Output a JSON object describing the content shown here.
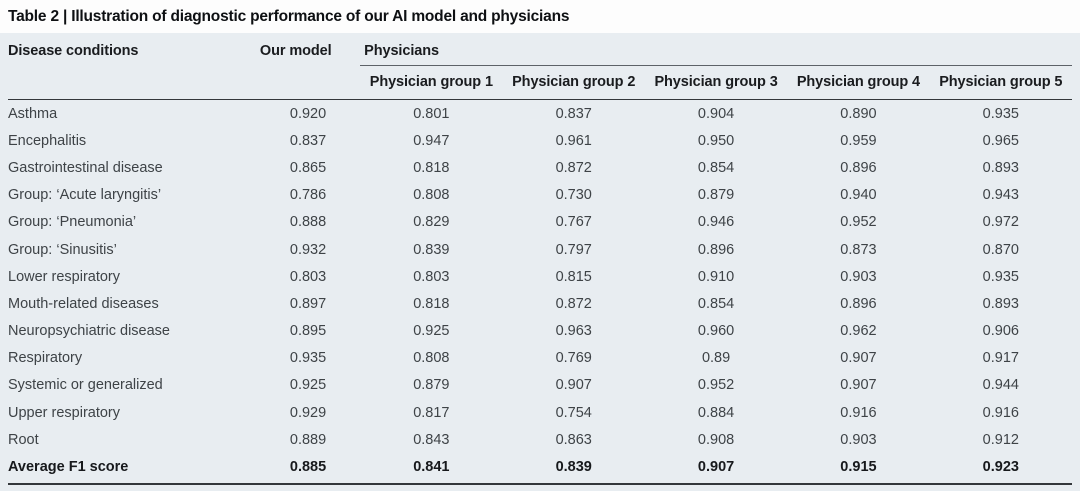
{
  "table": {
    "title": "Table 2 | Illustration of diagnostic performance of our AI model and physicians",
    "columns": {
      "disease": "Disease conditions",
      "our_model": "Our model",
      "physicians": "Physicians",
      "physician_groups": [
        "Physician group 1",
        "Physician group 2",
        "Physician group 3",
        "Physician group 4",
        "Physician group 5"
      ]
    },
    "rows": [
      {
        "condition": "Asthma",
        "values": [
          "0.920",
          "0.801",
          "0.837",
          "0.904",
          "0.890",
          "0.935"
        ]
      },
      {
        "condition": "Encephalitis",
        "values": [
          "0.837",
          "0.947",
          "0.961",
          "0.950",
          "0.959",
          "0.965"
        ]
      },
      {
        "condition": "Gastrointestinal disease",
        "values": [
          "0.865",
          "0.818",
          "0.872",
          "0.854",
          "0.896",
          "0.893"
        ]
      },
      {
        "condition": "Group: ‘Acute laryngitis’",
        "values": [
          "0.786",
          "0.808",
          "0.730",
          "0.879",
          "0.940",
          "0.943"
        ]
      },
      {
        "condition": "Group: ‘Pneumonia’",
        "values": [
          "0.888",
          "0.829",
          "0.767",
          "0.946",
          "0.952",
          "0.972"
        ]
      },
      {
        "condition": "Group: ‘Sinusitis’",
        "values": [
          "0.932",
          "0.839",
          "0.797",
          "0.896",
          "0.873",
          "0.870"
        ]
      },
      {
        "condition": "Lower respiratory",
        "values": [
          "0.803",
          "0.803",
          "0.815",
          "0.910",
          "0.903",
          "0.935"
        ]
      },
      {
        "condition": "Mouth-related diseases",
        "values": [
          "0.897",
          "0.818",
          "0.872",
          "0.854",
          "0.896",
          "0.893"
        ]
      },
      {
        "condition": "Neuropsychiatric disease",
        "values": [
          "0.895",
          "0.925",
          "0.963",
          "0.960",
          "0.962",
          "0.906"
        ]
      },
      {
        "condition": "Respiratory",
        "values": [
          "0.935",
          "0.808",
          "0.769",
          "0.89",
          "0.907",
          "0.917"
        ]
      },
      {
        "condition": "Systemic or generalized",
        "values": [
          "0.925",
          "0.879",
          "0.907",
          "0.952",
          "0.907",
          "0.944"
        ]
      },
      {
        "condition": "Upper respiratory",
        "values": [
          "0.929",
          "0.817",
          "0.754",
          "0.884",
          "0.916",
          "0.916"
        ]
      },
      {
        "condition": "Root",
        "values": [
          "0.889",
          "0.843",
          "0.863",
          "0.908",
          "0.903",
          "0.912"
        ]
      }
    ],
    "average_row": {
      "condition": "Average F1 score",
      "values": [
        "0.885",
        "0.841",
        "0.839",
        "0.907",
        "0.915",
        "0.923"
      ]
    },
    "colors": {
      "table_background": "#e8edf1",
      "dark_rule": "#33373b",
      "light_rule": "#5d6268",
      "header_text": "#1a1c1f",
      "body_text": "#3e4347"
    }
  }
}
